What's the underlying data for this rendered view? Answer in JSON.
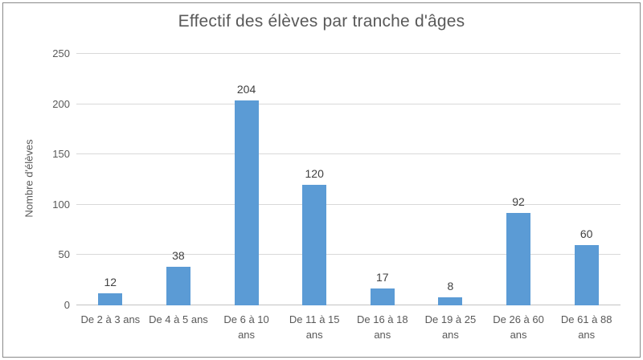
{
  "chart_data": {
    "type": "bar",
    "title": "Effectif des élèves par tranche d'âges",
    "xlabel": "",
    "ylabel": "Nombre d'élèves",
    "categories": [
      "De 2 à 3 ans",
      "De 4 à 5 ans",
      "De 6 à 10 ans",
      "De 11 à 15 ans",
      "De 16 à 18 ans",
      "De 19 à 25 ans",
      "De 26 à 60 ans",
      "De 61 à 88 ans"
    ],
    "category_label_lines": [
      [
        "De 2 à 3 ans"
      ],
      [
        "De 4 à 5 ans"
      ],
      [
        "De 6 à 10",
        "ans"
      ],
      [
        "De 11 à 15",
        "ans"
      ],
      [
        "De 16 à 18",
        "ans"
      ],
      [
        "De 19 à 25",
        "ans"
      ],
      [
        "De 26 à 60",
        "ans"
      ],
      [
        "De 61 à 88",
        "ans"
      ]
    ],
    "values": [
      12,
      38,
      204,
      120,
      17,
      8,
      92,
      60
    ],
    "data_labels_shown": true,
    "ylim": [
      0,
      250
    ],
    "yticks": [
      0,
      50,
      100,
      150,
      200,
      250
    ],
    "grid": true,
    "legend": false,
    "colors": {
      "bar": "#5b9bd5",
      "gridline": "#d9d9d9",
      "axis_text": "#595959",
      "data_label": "#404040",
      "title": "#595959",
      "frame_border": "#898989"
    }
  }
}
